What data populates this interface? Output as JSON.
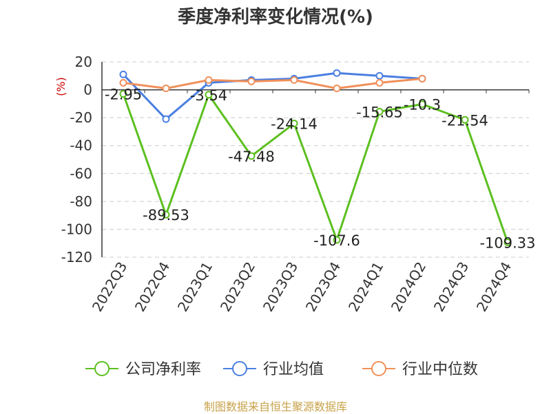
{
  "title": "季度净利率变化情况(%)",
  "source": "制图数据来自恒生聚源数据库",
  "chart_data": {
    "type": "line",
    "title": "季度净利率变化情况(%)",
    "ylabel": "(%)",
    "xlabel": "",
    "categories": [
      "2022Q3",
      "2022Q4",
      "2023Q1",
      "2023Q2",
      "2023Q3",
      "2023Q4",
      "2024Q1",
      "2024Q2",
      "2024Q3",
      "2024Q4"
    ],
    "ylim": [
      -120,
      20
    ],
    "yticks": [
      "20",
      "0",
      "-20",
      "-40",
      "-60",
      "-80",
      "-100",
      "-120"
    ],
    "grid": true,
    "legend_position": "bottom",
    "series": [
      {
        "name": "公司净利率",
        "color": "#5cbf1f",
        "values": [
          -2.95,
          -89.53,
          -3.54,
          -47.48,
          -24.14,
          -107.6,
          -15.65,
          -10.3,
          -21.54,
          -109.33
        ],
        "labels": [
          "-2.95",
          "-89.53",
          "-3.54",
          "-47.48",
          "-24.14",
          "-107.6",
          "-15.65",
          "-10.3",
          "-21.54",
          "-109.33"
        ]
      },
      {
        "name": "行业均值",
        "color": "#4a7fe0",
        "values": [
          11,
          -21,
          5,
          7,
          8,
          12,
          10,
          8,
          null,
          null
        ]
      },
      {
        "name": "行业中位数",
        "color": "#f0905a",
        "values": [
          5,
          1,
          7,
          6,
          7,
          1,
          5,
          8,
          null,
          null
        ]
      }
    ]
  }
}
